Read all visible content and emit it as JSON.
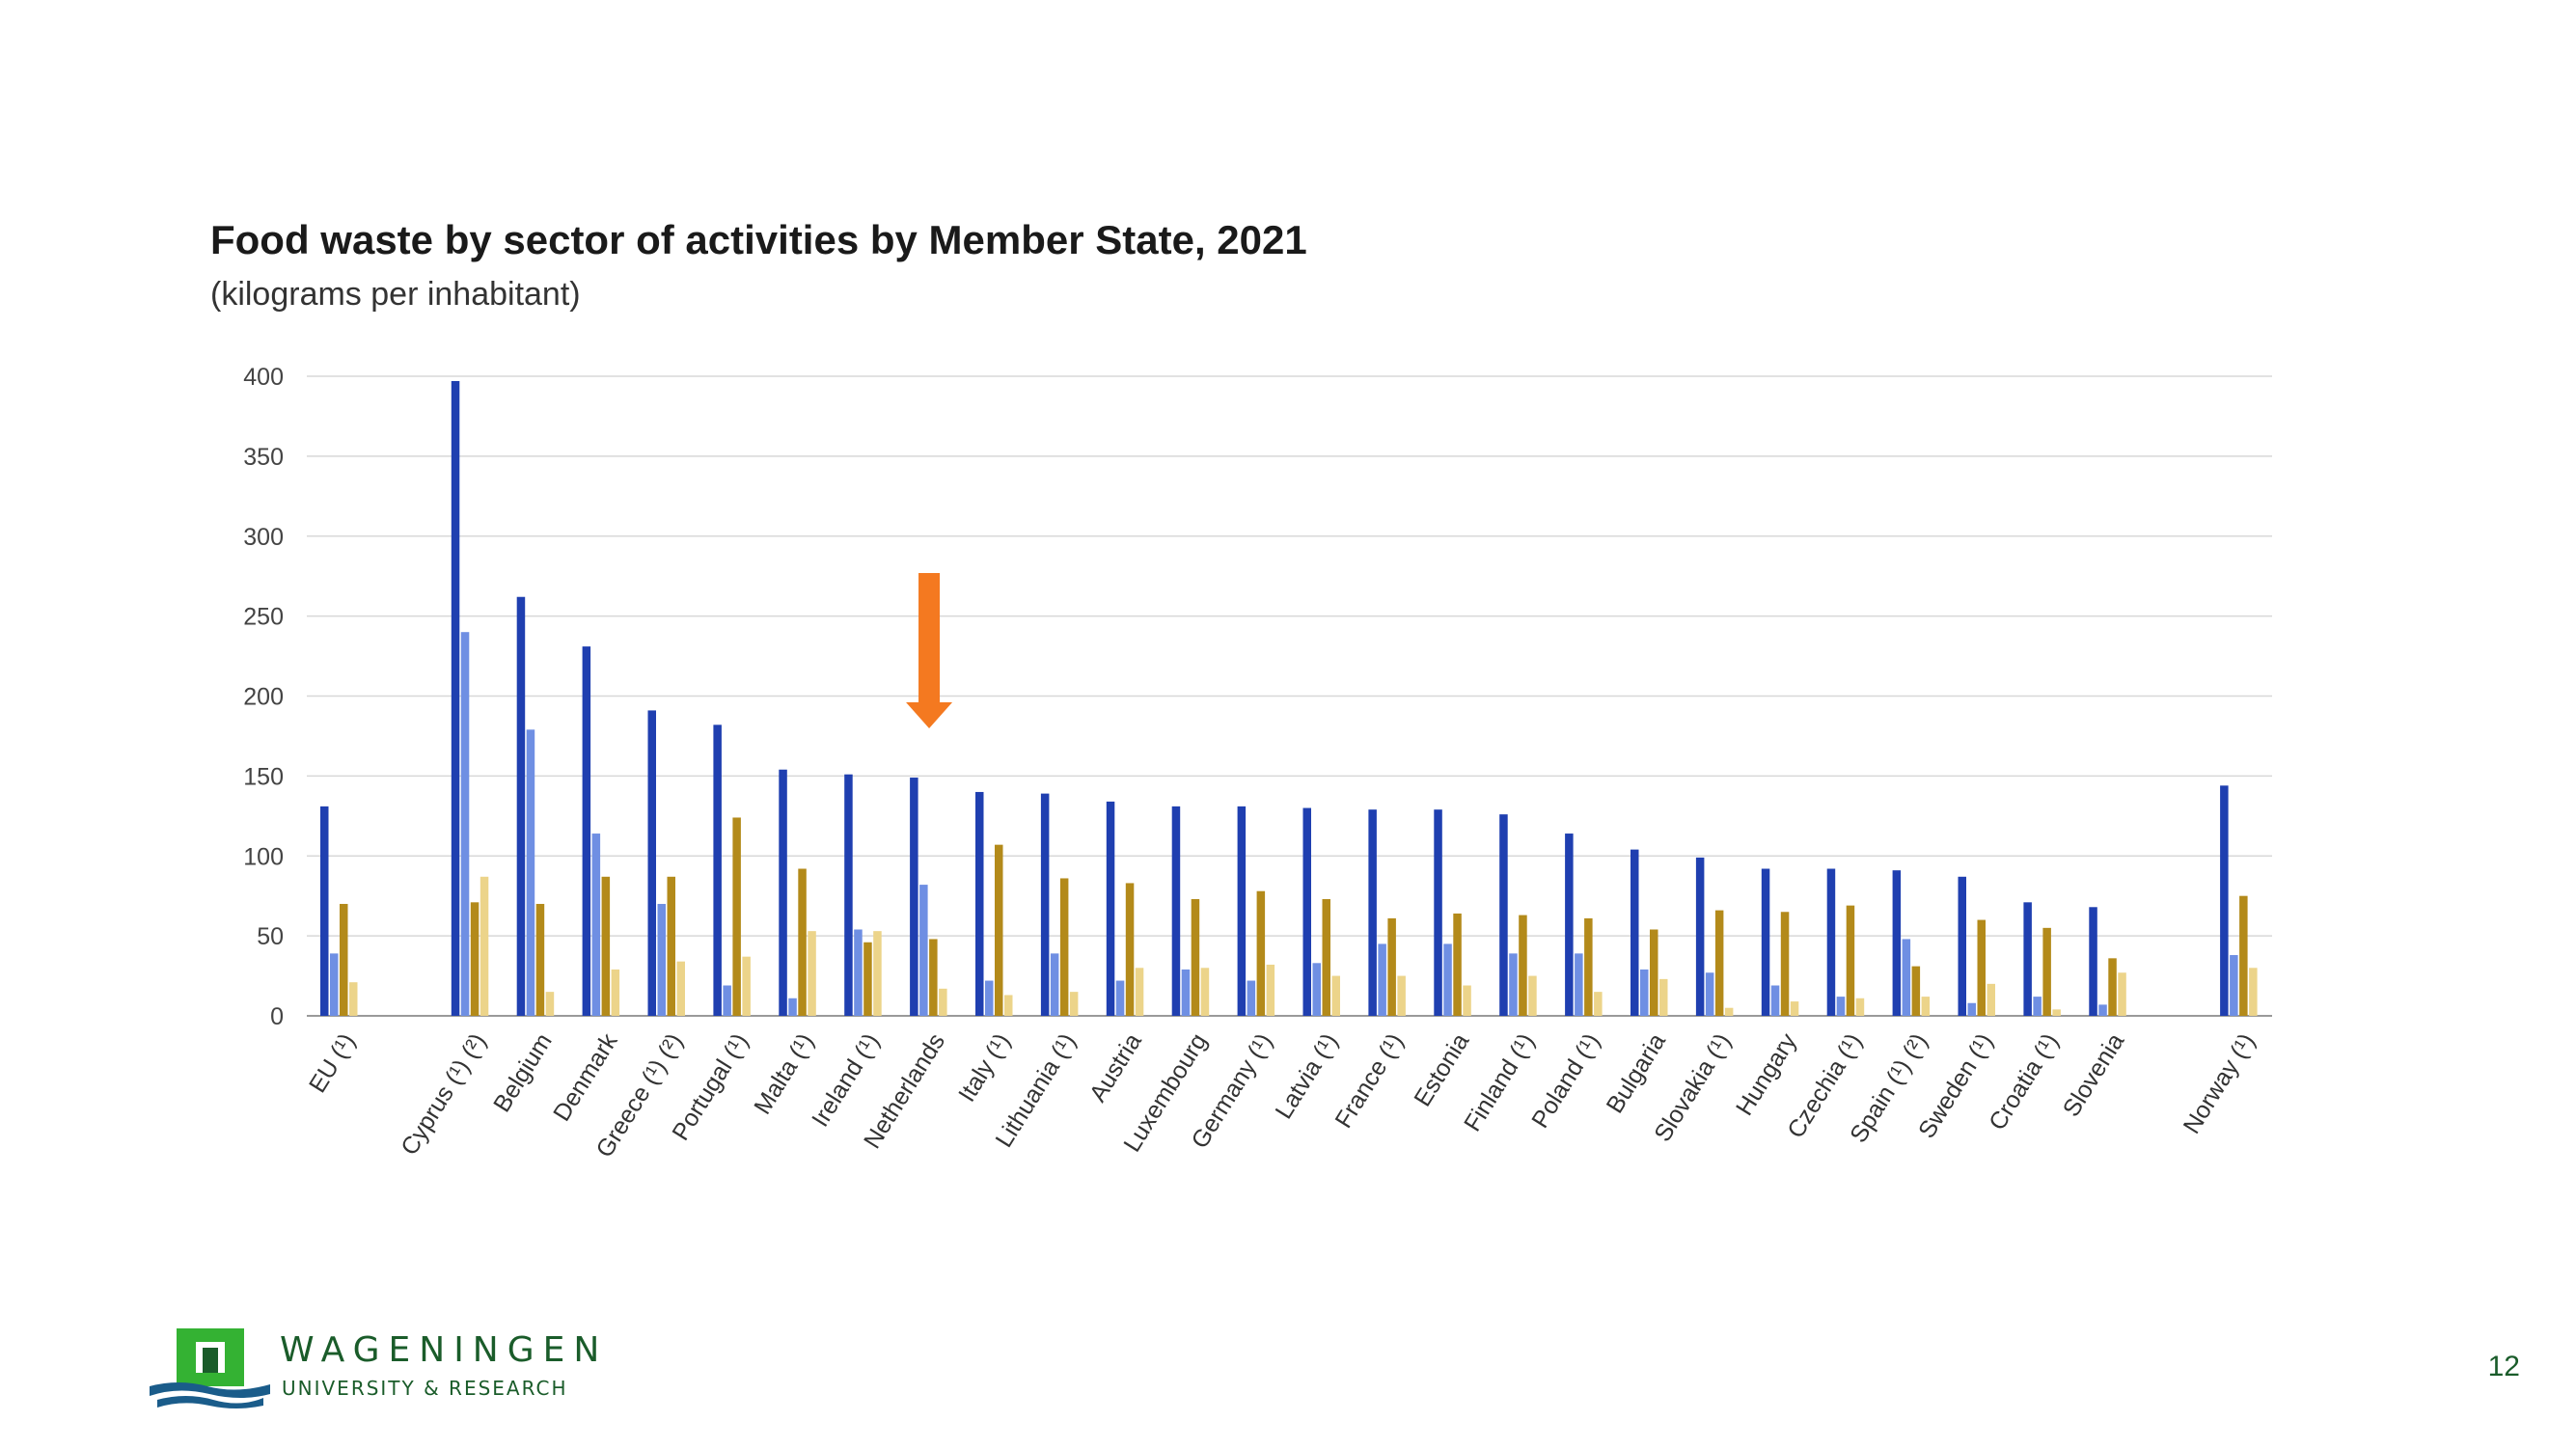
{
  "slide": {
    "page_number": "12"
  },
  "logo": {
    "name": "WAGENINGEN",
    "subname": "UNIVERSITY & RESEARCH"
  },
  "colors": {
    "series": [
      "#1f3fb0",
      "#6f8fe3",
      "#b38a1a",
      "#ecd48a"
    ],
    "arrow": "#f47920",
    "grid": "#d8d8d8"
  },
  "chart_data": {
    "type": "bar",
    "title": "Food waste by sector of activities by Member State, 2021",
    "subtitle": "(kilograms per inhabitant)",
    "ylim": [
      0,
      400
    ],
    "yticks": [
      "0",
      "50",
      "100",
      "150",
      "200",
      "250",
      "300",
      "350",
      "400"
    ],
    "grid": true,
    "categories": [
      "EU (¹)",
      "",
      "Cyprus (¹) (²)",
      "Belgium",
      "Denmark",
      "Greece (¹) (²)",
      "Portugal (¹)",
      "Malta (¹)",
      "Ireland (¹)",
      "Netherlands",
      "Italy (¹)",
      "Lithuania (¹)",
      "Austria",
      "Luxembourg",
      "Germany (¹)",
      "Latvia (¹)",
      "France (¹)",
      "Estonia",
      "Finland (¹)",
      "Poland (¹)",
      "Bulgaria",
      "Slovakia (¹)",
      "Hungary",
      "Czechia (¹)",
      "Spain (¹) (²)",
      "Sweden (¹)",
      "Croatia (¹)",
      "Slovenia",
      "",
      "Norway (¹)"
    ],
    "series": [
      {
        "values": [
          131,
          null,
          397,
          262,
          231,
          191,
          182,
          154,
          151,
          149,
          140,
          139,
          134,
          131,
          131,
          130,
          129,
          129,
          126,
          114,
          104,
          99,
          92,
          92,
          91,
          87,
          71,
          68,
          null,
          144
        ]
      },
      {
        "values": [
          39,
          null,
          240,
          179,
          114,
          70,
          19,
          11,
          54,
          82,
          22,
          39,
          22,
          29,
          22,
          33,
          45,
          45,
          39,
          39,
          29,
          27,
          19,
          12,
          48,
          8,
          12,
          7,
          null,
          38
        ]
      },
      {
        "values": [
          70,
          null,
          71,
          70,
          87,
          87,
          124,
          92,
          46,
          48,
          107,
          86,
          83,
          73,
          78,
          73,
          61,
          64,
          63,
          61,
          54,
          66,
          65,
          69,
          31,
          60,
          55,
          36,
          null,
          75
        ]
      },
      {
        "values": [
          21,
          null,
          87,
          15,
          29,
          34,
          37,
          53,
          53,
          17,
          13,
          15,
          30,
          30,
          32,
          25,
          25,
          19,
          25,
          15,
          23,
          5,
          9,
          11,
          12,
          20,
          4,
          27,
          null,
          30
        ]
      }
    ],
    "annotations": [
      {
        "type": "arrow",
        "category": "Netherlands"
      }
    ]
  }
}
